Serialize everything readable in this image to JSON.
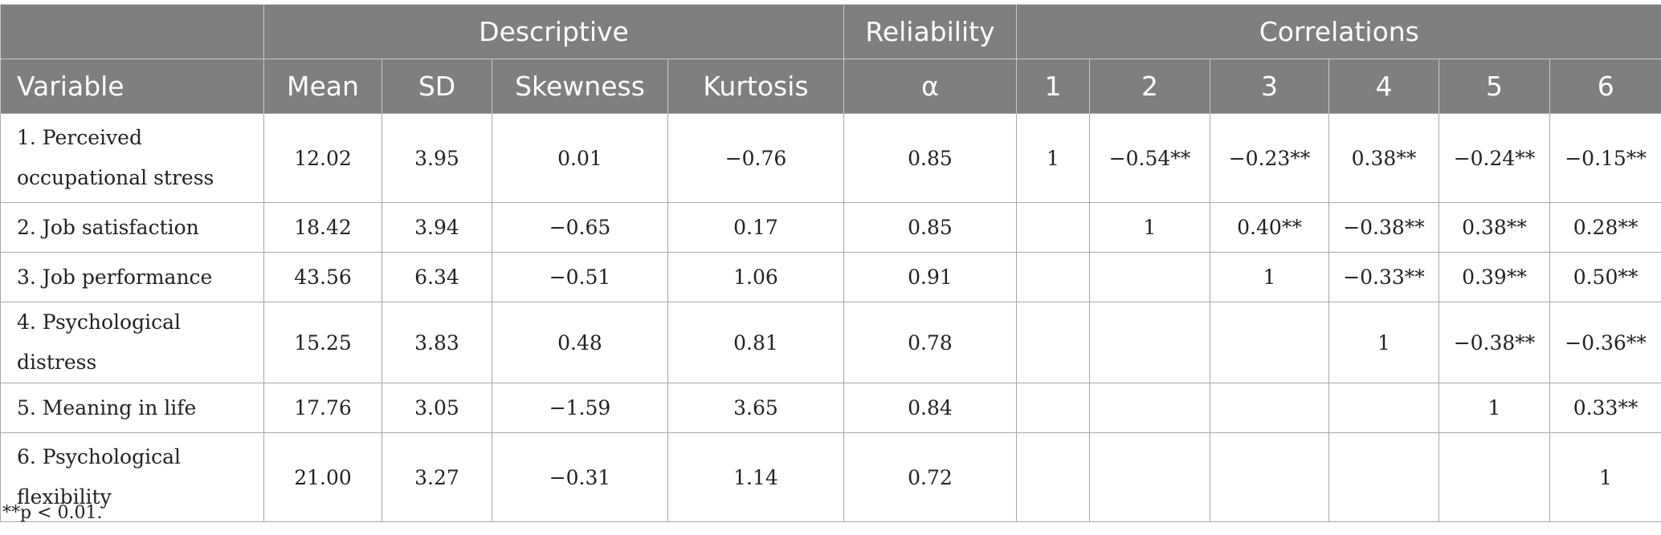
{
  "table": {
    "group_headers": {
      "descriptive": "Descriptive",
      "reliability": "Reliability",
      "correlations": "Correlations"
    },
    "column_headers": [
      "Variable",
      "Mean",
      "SD",
      "Skewness",
      "Kurtosis",
      "α",
      "1",
      "2",
      "3",
      "4",
      "5",
      "6"
    ],
    "rows": [
      [
        "1. Perceived occupational stress",
        "12.02",
        "3.95",
        "0.01",
        "−0.76",
        "0.85",
        "1",
        "−0.54**",
        "−0.23**",
        "0.38**",
        "−0.24**",
        "−0.15**"
      ],
      [
        "2. Job satisfaction",
        "18.42",
        "3.94",
        "−0.65",
        "0.17",
        "0.85",
        "",
        "1",
        "0.40**",
        "−0.38**",
        "0.38**",
        "0.28**"
      ],
      [
        "3. Job performance",
        "43.56",
        "6.34",
        "−0.51",
        "1.06",
        "0.91",
        "",
        "",
        "1",
        "−0.33**",
        "0.39**",
        "0.50**"
      ],
      [
        "4. Psychological distress",
        "15.25",
        "3.83",
        "0.48",
        "0.81",
        "0.78",
        "",
        "",
        "",
        "1",
        "−0.38**",
        "−0.36**"
      ],
      [
        "5. Meaning in life",
        "17.76",
        "3.05",
        "−1.59",
        "3.65",
        "0.84",
        "",
        "",
        "",
        "",
        "1",
        "0.33**"
      ],
      [
        "6. Psychological flexibility",
        "21.00",
        "3.27",
        "−0.31",
        "1.14",
        "0.72",
        "",
        "",
        "",
        "",
        "",
        "1"
      ]
    ]
  },
  "footnote": "**p < 0.01.",
  "colors": {
    "header_bg": "#7e7f7e",
    "header_text": "#ffffff",
    "grid": "#a8a8a8"
  }
}
